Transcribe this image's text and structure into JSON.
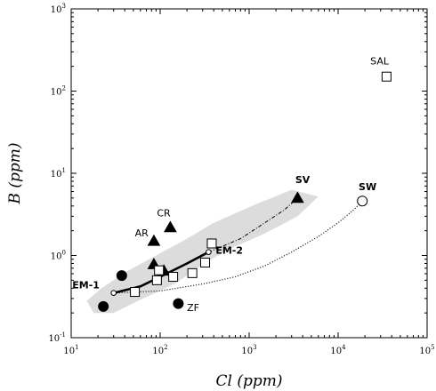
{
  "chart_data": {
    "type": "scatter",
    "title": "",
    "xlabel": "Cl (ppm)",
    "ylabel": "B (ppm)",
    "xscale": "log",
    "yscale": "log",
    "xlim": [
      10,
      100000
    ],
    "ylim": [
      0.1,
      1000
    ],
    "x_ticks": [
      {
        "base": "10",
        "exp": "1"
      },
      {
        "base": "10",
        "exp": "2"
      },
      {
        "base": "10",
        "exp": "3"
      },
      {
        "base": "10",
        "exp": "4"
      },
      {
        "base": "10",
        "exp": "5"
      }
    ],
    "y_ticks": [
      {
        "base": "10",
        "exp": "-1"
      },
      {
        "base": "10",
        "exp": "0"
      },
      {
        "base": "10",
        "exp": "1"
      },
      {
        "base": "10",
        "exp": "2"
      },
      {
        "base": "10",
        "exp": "3"
      }
    ],
    "colors": {
      "shaded_field": "#dcdcdc",
      "marker": "#000000"
    },
    "shaded_field": [
      [
        18,
        0.2
      ],
      [
        15,
        0.28
      ],
      [
        22,
        0.4
      ],
      [
        40,
        0.62
      ],
      [
        90,
        1.0
      ],
      [
        200,
        1.6
      ],
      [
        400,
        2.5
      ],
      [
        1200,
        4.2
      ],
      [
        3000,
        6.3
      ],
      [
        6000,
        5.2
      ],
      [
        3500,
        3.0
      ],
      [
        1500,
        1.85
      ],
      [
        600,
        1.2
      ],
      [
        300,
        0.78
      ],
      [
        150,
        0.46
      ],
      [
        60,
        0.29
      ],
      [
        30,
        0.2
      ]
    ],
    "series": [
      {
        "marker": "triangle",
        "fill": "filled",
        "points": [
          [
            85,
            1.5
          ],
          [
            130,
            2.2
          ],
          [
            85,
            0.78
          ],
          [
            110,
            0.65
          ],
          [
            3500,
            5.0
          ]
        ]
      },
      {
        "marker": "circle",
        "fill": "filled",
        "points": [
          [
            23,
            0.24
          ],
          [
            37,
            0.57
          ],
          [
            160,
            0.26
          ]
        ]
      },
      {
        "marker": "square",
        "fill": "open",
        "points": [
          [
            52,
            0.36
          ],
          [
            92,
            0.5
          ],
          [
            97,
            0.66
          ],
          [
            140,
            0.55
          ],
          [
            230,
            0.61
          ],
          [
            320,
            0.82
          ],
          [
            380,
            1.4
          ],
          [
            35000,
            150
          ]
        ]
      },
      {
        "marker": "circle",
        "fill": "open",
        "points": [
          [
            30,
            0.35
          ],
          [
            350,
            1.1
          ],
          [
            18700,
            4.6
          ]
        ]
      }
    ],
    "lines": [
      {
        "style": "solid-thick",
        "points": [
          [
            30,
            0.35
          ],
          [
            60,
            0.42
          ],
          [
            100,
            0.55
          ],
          [
            200,
            0.8
          ],
          [
            350,
            1.1
          ]
        ]
      },
      {
        "style": "dash-dot",
        "points": [
          [
            350,
            1.1
          ],
          [
            800,
            1.6
          ],
          [
            1500,
            2.5
          ],
          [
            2500,
            3.6
          ],
          [
            3500,
            5.0
          ]
        ]
      },
      {
        "style": "dotted",
        "points": [
          [
            30,
            0.35
          ],
          [
            100,
            0.37
          ],
          [
            300,
            0.45
          ],
          [
            700,
            0.55
          ],
          [
            1500,
            0.75
          ],
          [
            3000,
            1.1
          ],
          [
            6000,
            1.7
          ],
          [
            10000,
            2.5
          ],
          [
            15000,
            3.6
          ],
          [
            18700,
            4.6
          ]
        ]
      }
    ],
    "annotations": [
      {
        "text": "SAL",
        "x": 23000,
        "y": 210,
        "bold": false
      },
      {
        "text": "SV",
        "x": 3300,
        "y": 7.6,
        "bold": true
      },
      {
        "text": "SW",
        "x": 17000,
        "y": 6.2,
        "bold": true
      },
      {
        "text": "CR",
        "x": 92,
        "y": 3.0,
        "bold": false
      },
      {
        "text": "AR",
        "x": 52,
        "y": 1.7,
        "bold": false
      },
      {
        "text": "EM-2",
        "x": 420,
        "y": 1.05,
        "bold": true
      },
      {
        "text": "EM-1",
        "x": 10.3,
        "y": 0.4,
        "bold": true
      },
      {
        "text": "ZF",
        "x": 200,
        "y": 0.21,
        "bold": false
      }
    ]
  }
}
